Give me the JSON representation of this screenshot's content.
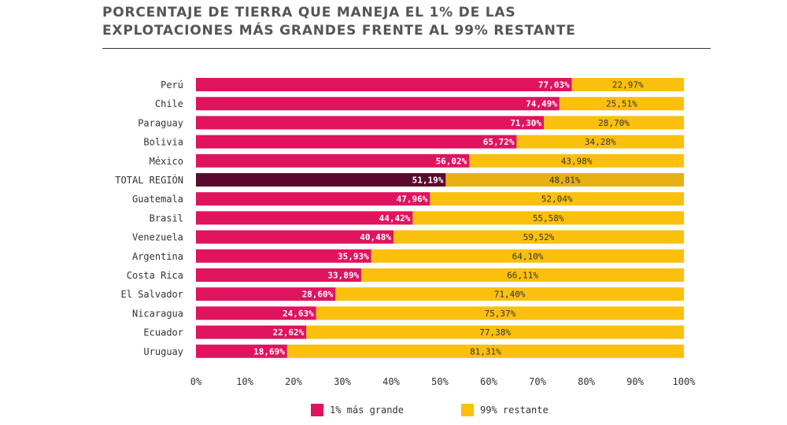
{
  "header": {
    "title_line1": "PORCENTAJE DE TIERRA QUE MANEJA EL 1% DE LAS",
    "title_line2": "EXPLOTACIONES MÁS GRANDES FRENTE AL 99% RESTANTE"
  },
  "colors": {
    "top1": "#e0135f",
    "rest": "#fbbf0e",
    "total_top1": "#5a0a2e",
    "total_rest": "#e8b112"
  },
  "chart_data": {
    "type": "bar",
    "orientation": "horizontal",
    "stacked": true,
    "categories": [
      "Perú",
      "Chile",
      "Paraguay",
      "Bolivia",
      "México",
      "TOTAL REGIÓN",
      "Guatemala",
      "Brasil",
      "Venezuela",
      "Argentina",
      "Costa Rica",
      "El Salvador",
      "Nicaragua",
      "Ecuador",
      "Uruguay"
    ],
    "series": [
      {
        "name": "1% más grande",
        "values": [
          77.03,
          74.49,
          71.3,
          65.72,
          56.02,
          51.19,
          47.96,
          44.42,
          40.48,
          35.93,
          33.89,
          28.6,
          24.63,
          22.62,
          18.69
        ],
        "labels": [
          "77,03%",
          "74,49%",
          "71,30%",
          "65,72%",
          "56,02%",
          "51,19%",
          "47,96%",
          "44,42%",
          "40,48%",
          "35,93%",
          "33,89%",
          "28,60%",
          "24,63%",
          "22,62%",
          "18,69%"
        ]
      },
      {
        "name": "99% restante",
        "values": [
          22.97,
          25.51,
          28.7,
          34.28,
          43.98,
          48.81,
          52.04,
          55.58,
          59.52,
          64.1,
          66.11,
          71.4,
          75.37,
          77.38,
          81.31
        ],
        "labels": [
          "22,97%",
          "25,51%",
          "28,70%",
          "34,28%",
          "43,98%",
          "48,81%",
          "52,04%",
          "55,58%",
          "59,52%",
          "64,10%",
          "66,11%",
          "71,40%",
          "75,37%",
          "77,38%",
          "81,31%"
        ]
      }
    ],
    "highlight_category": "TOTAL REGIÓN",
    "xlim": [
      0,
      100
    ],
    "xticks": [
      0,
      10,
      20,
      30,
      40,
      50,
      60,
      70,
      80,
      90,
      100
    ],
    "xtick_labels": [
      "0%",
      "10%",
      "20%",
      "30%",
      "40%",
      "50%",
      "60%",
      "70%",
      "80%",
      "90%",
      "100%"
    ],
    "grid": false,
    "legend": {
      "position": "bottom"
    }
  }
}
